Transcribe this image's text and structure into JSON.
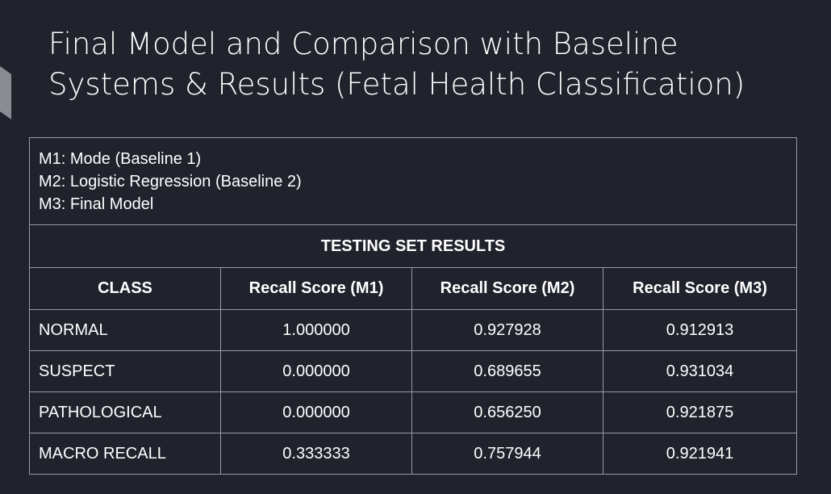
{
  "title": {
    "line1": "Final Model and Comparison with Baseline",
    "line2": "Systems & Results (Fetal Health Classification)"
  },
  "legend": [
    "M1: Mode (Baseline 1)",
    "M2: Logistic Regression (Baseline 2)",
    "M3: Final Model"
  ],
  "table": {
    "section_title": "TESTING SET RESULTS",
    "headers": [
      "CLASS",
      "Recall Score (M1)",
      "Recall Score (M2)",
      "Recall Score (M3)"
    ],
    "rows": [
      [
        "NORMAL",
        "1.000000",
        "0.927928",
        "0.912913"
      ],
      [
        "SUSPECT",
        "0.000000",
        "0.689655",
        "0.931034"
      ],
      [
        "PATHOLOGICAL",
        "0.000000",
        "0.656250",
        "0.921875"
      ],
      [
        "MACRO RECALL",
        "0.333333",
        "0.757944",
        "0.921941"
      ]
    ]
  },
  "colors": {
    "background": "#20222c",
    "border": "#9a9ca3",
    "text": "#ffffff",
    "accent": "#8a8c93"
  }
}
